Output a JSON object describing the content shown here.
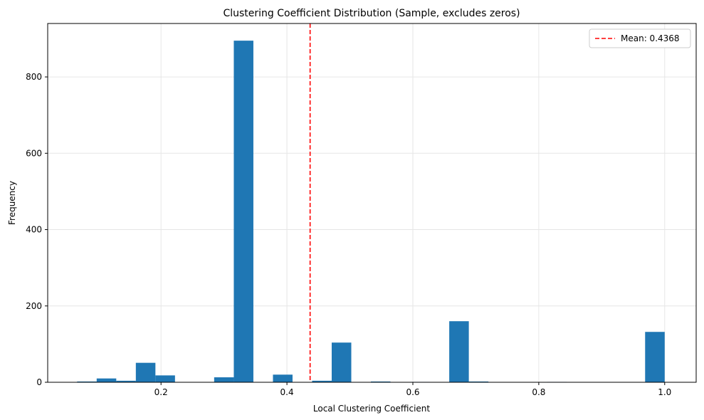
{
  "chart_data": {
    "type": "bar",
    "title": "Clustering Coefficient Distribution (Sample, excludes zeros)",
    "xlabel": "Local Clustering Coefficient",
    "ylabel": "Frequency",
    "xlim": [
      0.02,
      1.05
    ],
    "ylim": [
      0,
      940
    ],
    "xticks": [
      0.2,
      0.4,
      0.6,
      0.8,
      1.0
    ],
    "xtick_labels": [
      "0.2",
      "0.4",
      "0.6",
      "0.8",
      "1.0"
    ],
    "yticks": [
      0,
      200,
      400,
      600,
      800
    ],
    "ytick_labels": [
      "0",
      "200",
      "400",
      "600",
      "800"
    ],
    "grid": true,
    "bar_color": "#1f77b4",
    "bins": [
      {
        "x0": 0.0667,
        "x1": 0.0978,
        "value": 2
      },
      {
        "x0": 0.0978,
        "x1": 0.1289,
        "value": 10
      },
      {
        "x0": 0.1289,
        "x1": 0.16,
        "value": 4
      },
      {
        "x0": 0.16,
        "x1": 0.1911,
        "value": 51
      },
      {
        "x0": 0.1911,
        "x1": 0.2222,
        "value": 18
      },
      {
        "x0": 0.2844,
        "x1": 0.3156,
        "value": 13
      },
      {
        "x0": 0.3156,
        "x1": 0.3467,
        "value": 895
      },
      {
        "x0": 0.3778,
        "x1": 0.4089,
        "value": 20
      },
      {
        "x0": 0.44,
        "x1": 0.4711,
        "value": 4
      },
      {
        "x0": 0.4711,
        "x1": 0.5022,
        "value": 104
      },
      {
        "x0": 0.5333,
        "x1": 0.5644,
        "value": 2
      },
      {
        "x0": 0.5956,
        "x1": 0.6267,
        "value": 1
      },
      {
        "x0": 0.6578,
        "x1": 0.6889,
        "value": 160
      },
      {
        "x0": 0.6889,
        "x1": 0.72,
        "value": 2
      },
      {
        "x0": 0.8133,
        "x1": 0.8444,
        "value": 1
      },
      {
        "x0": 0.9689,
        "x1": 1.0,
        "value": 132
      }
    ],
    "mean_line": {
      "value": 0.4368,
      "color": "#ff0000",
      "style": "dashed"
    },
    "legend": {
      "position": "top-right",
      "entries": [
        {
          "label": "Mean: 0.4368",
          "color": "#ff0000",
          "style": "dashed"
        }
      ]
    }
  }
}
